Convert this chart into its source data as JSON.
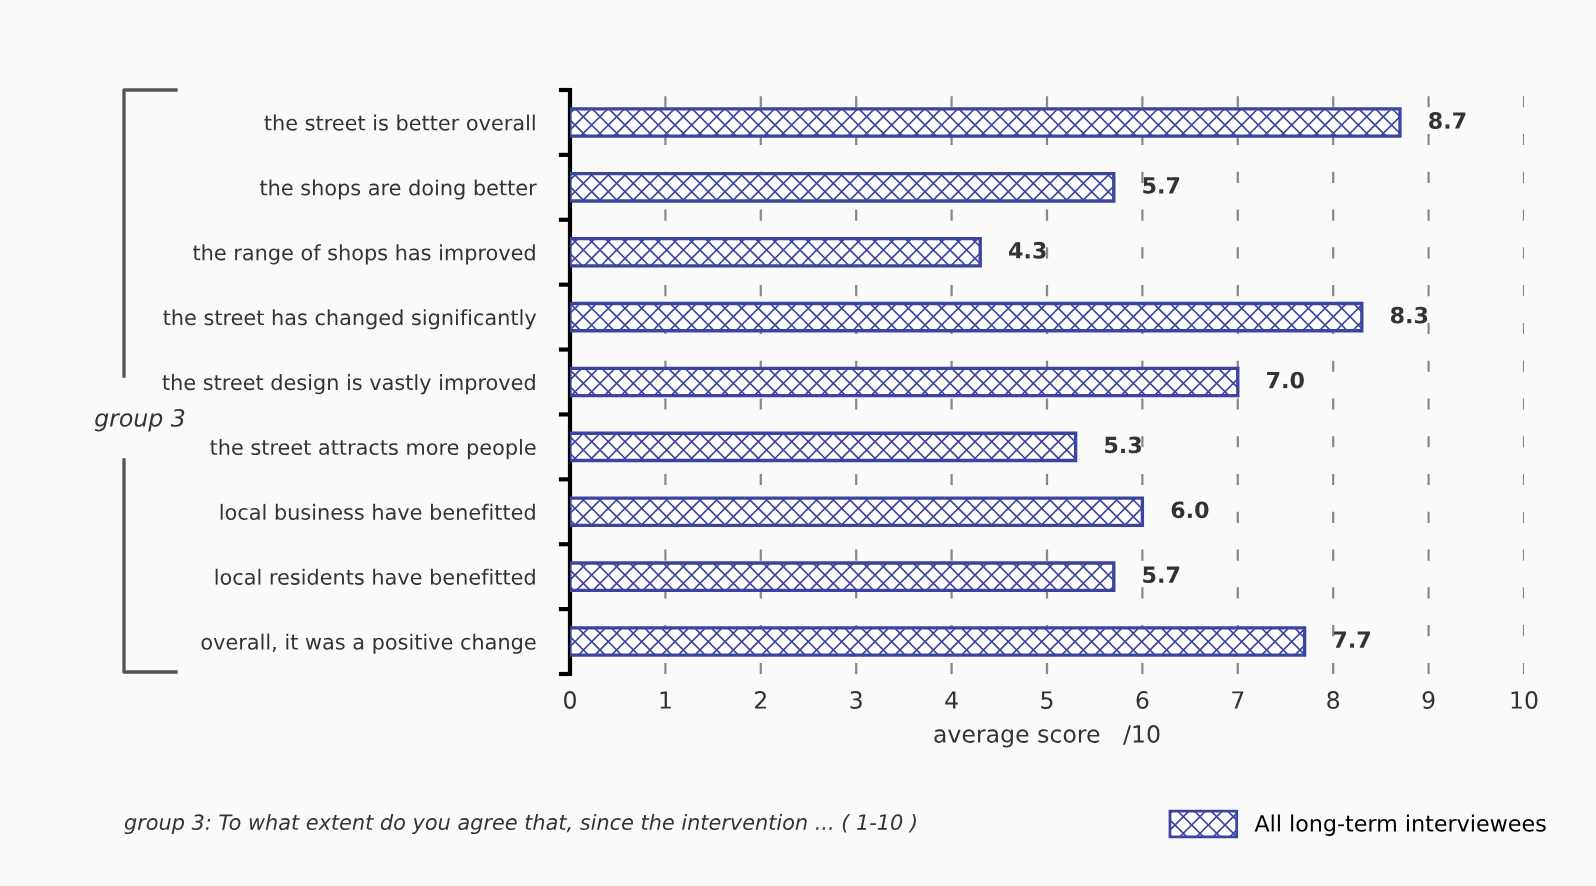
{
  "chart_data": {
    "type": "bar",
    "orientation": "horizontal",
    "categories": [
      "the street is better overall",
      "the shops are doing better",
      "the range of shops has improved",
      "the street has changed significantly",
      "the street design is vastly improved",
      "the street attracts more people",
      "local business have benefitted",
      "local residents have benefitted",
      "overall, it was a positive change"
    ],
    "series": [
      {
        "name": "All long-term interviewees",
        "color": "#3a45a0",
        "values": [
          8.7,
          5.7,
          4.3,
          8.3,
          7.0,
          5.3,
          6.0,
          5.7,
          7.7
        ],
        "value_labels": [
          "8.7",
          "5.7",
          "4.3",
          "8.3",
          "7.0",
          "5.3",
          "6.0",
          "5.7",
          "7.7"
        ]
      }
    ],
    "xlim": [
      0,
      10
    ],
    "xticks": [
      0,
      1,
      2,
      3,
      4,
      5,
      6,
      7,
      8,
      9,
      10
    ],
    "xlabel": "average score   /10",
    "grid": "x",
    "legend": "bottom right",
    "annotations": [
      "group 3",
      "group 3: To what extent do you agree that, since the intervention ... ( 1-10 )"
    ]
  }
}
